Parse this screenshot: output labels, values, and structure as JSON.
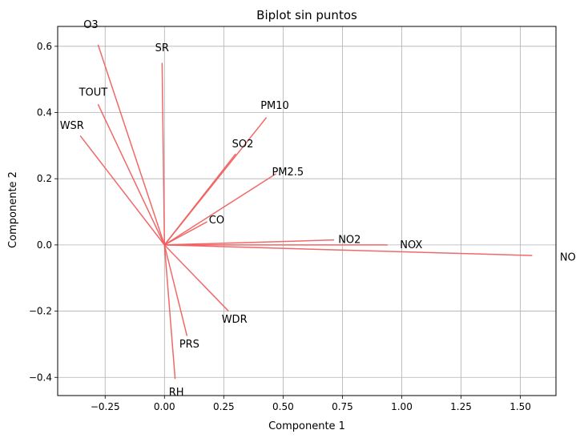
{
  "chart_data": {
    "type": "biplot",
    "title": "Biplot sin puntos",
    "xlabel": "Componente 1",
    "ylabel": "Componente 2",
    "xlim": [
      -0.45,
      1.65
    ],
    "ylim": [
      -0.455,
      0.66
    ],
    "grid": true,
    "line_color": "#f06060",
    "xticks": [
      {
        "value": -0.25,
        "label": "−0.25"
      },
      {
        "value": 0.0,
        "label": "0.00"
      },
      {
        "value": 0.25,
        "label": "0.25"
      },
      {
        "value": 0.5,
        "label": "0.50"
      },
      {
        "value": 0.75,
        "label": "0.75"
      },
      {
        "value": 1.0,
        "label": "1.00"
      },
      {
        "value": 1.25,
        "label": "1.25"
      },
      {
        "value": 1.5,
        "label": "1.50"
      }
    ],
    "yticks": [
      {
        "value": -0.4,
        "label": "−0.4"
      },
      {
        "value": -0.2,
        "label": "−0.2"
      },
      {
        "value": 0.0,
        "label": "0.0"
      },
      {
        "value": 0.2,
        "label": "0.2"
      },
      {
        "value": 0.4,
        "label": "0.4"
      },
      {
        "value": 0.6,
        "label": "0.6"
      }
    ],
    "vectors": [
      {
        "name": "O3",
        "x": -0.28,
        "y": 0.605,
        "label_x": -0.31,
        "label_y": 0.665
      },
      {
        "name": "SR",
        "x": -0.01,
        "y": 0.55,
        "label_x": -0.01,
        "label_y": 0.595
      },
      {
        "name": "TOUT",
        "x": -0.28,
        "y": 0.425,
        "label_x": -0.3,
        "label_y": 0.46
      },
      {
        "name": "WSR",
        "x": -0.355,
        "y": 0.33,
        "label_x": -0.39,
        "label_y": 0.36
      },
      {
        "name": "PM10",
        "x": 0.43,
        "y": 0.385,
        "label_x": 0.465,
        "label_y": 0.42
      },
      {
        "name": "SO2",
        "x": 0.3,
        "y": 0.275,
        "label_x": 0.33,
        "label_y": 0.305
      },
      {
        "name": "PM2.5",
        "x": 0.47,
        "y": 0.215,
        "label_x": 0.52,
        "label_y": 0.22
      },
      {
        "name": "CO",
        "x": 0.18,
        "y": 0.07,
        "label_x": 0.22,
        "label_y": 0.075
      },
      {
        "name": "NO2",
        "x": 0.715,
        "y": 0.015,
        "label_x": 0.78,
        "label_y": 0.015
      },
      {
        "name": "NOX",
        "x": 0.94,
        "y": 0.0,
        "label_x": 1.04,
        "label_y": 0.0
      },
      {
        "name": "NO",
        "x": 1.55,
        "y": -0.032,
        "label_x": 1.7,
        "label_y": -0.038
      },
      {
        "name": "WDR",
        "x": 0.27,
        "y": -0.2,
        "label_x": 0.295,
        "label_y": -0.225
      },
      {
        "name": "PRS",
        "x": 0.095,
        "y": -0.275,
        "label_x": 0.105,
        "label_y": -0.3
      },
      {
        "name": "RH",
        "x": 0.045,
        "y": -0.405,
        "label_x": 0.05,
        "label_y": -0.445
      }
    ]
  }
}
